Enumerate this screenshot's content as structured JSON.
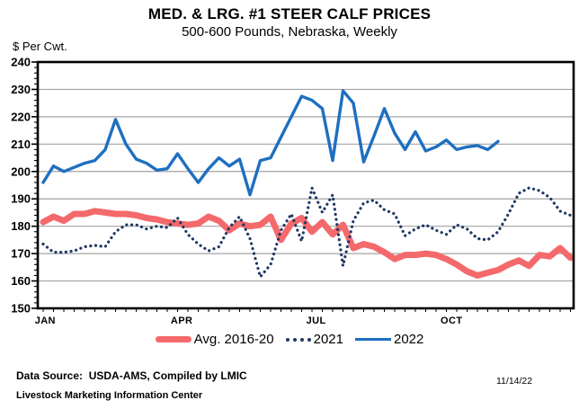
{
  "footer": {
    "source_line1": "Data Source:  USDA-AMS, Compiled by LMIC",
    "source_line2": "Livestock Marketing Information Center",
    "date": "11/14/22"
  },
  "chart_data": {
    "type": "line",
    "title": "MED. & LRG. #1 STEER CALF PRICES",
    "subtitle": "500-600 Pounds, Nebraska, Weekly",
    "ylabel": "$ Per Cwt.",
    "ylim": [
      150,
      240
    ],
    "ytick_interval": 10,
    "ytick_minor_interval": 2,
    "grid": "horizontal",
    "grid_color": "#A3A3A3",
    "axis_color": "#000000",
    "x_unit": "week of year",
    "weeks_per_year": 52,
    "xtick_labels": [
      "JAN",
      "APR",
      "JUL",
      "OCT"
    ],
    "xtick_weeks": [
      1.2,
      14.4,
      27.4,
      40.5
    ],
    "legend_position": "bottom",
    "series": [
      {
        "name": "Avg. 2016-20",
        "color": "#F4696B",
        "style": "solid-thick",
        "values": [
          181.5,
          183.5,
          182,
          184.5,
          184.5,
          185.5,
          185,
          184.5,
          184.5,
          184,
          183,
          182.5,
          181.5,
          181,
          180.5,
          181,
          183.5,
          182,
          178.5,
          181,
          180,
          180.5,
          183.5,
          175,
          181,
          183,
          178,
          181.5,
          177,
          180.5,
          172,
          173.5,
          172.5,
          170.5,
          168,
          169.5,
          169.5,
          170,
          169.5,
          168,
          166,
          163.5,
          162,
          163,
          164,
          166,
          167.5,
          165.5,
          169.5,
          169,
          172,
          168.5
        ]
      },
      {
        "name": "2021",
        "color": "#1F3864",
        "style": "dotted",
        "values": [
          173.5,
          170.5,
          170.5,
          171,
          172.5,
          173,
          172.5,
          178,
          180.5,
          180.5,
          179,
          180,
          179.5,
          183,
          177,
          173.5,
          171,
          172.5,
          179.5,
          183.5,
          175.5,
          161.5,
          166,
          178.5,
          184.5,
          174.5,
          194,
          185,
          191.5,
          165.5,
          182,
          188.5,
          189.5,
          186,
          184.5,
          176.5,
          179,
          180.5,
          178.5,
          177,
          180.5,
          179,
          175.5,
          175,
          178,
          184.5,
          192,
          194,
          193,
          190.5,
          185.5,
          184
        ]
      },
      {
        "name": "2022",
        "color": "#1E6FC0",
        "style": "solid",
        "values": [
          196,
          202,
          200,
          201.5,
          203,
          204,
          208,
          219,
          210,
          204.5,
          203,
          200.5,
          201,
          206.5,
          201,
          196,
          201,
          205,
          202,
          204.5,
          191.5,
          204,
          205,
          212.5,
          220,
          227.5,
          226,
          223,
          204,
          229.5,
          225,
          203.5,
          213,
          223,
          214,
          208,
          214.5,
          207.5,
          209,
          211.5,
          208,
          209,
          209.5,
          208,
          211
        ]
      }
    ]
  }
}
